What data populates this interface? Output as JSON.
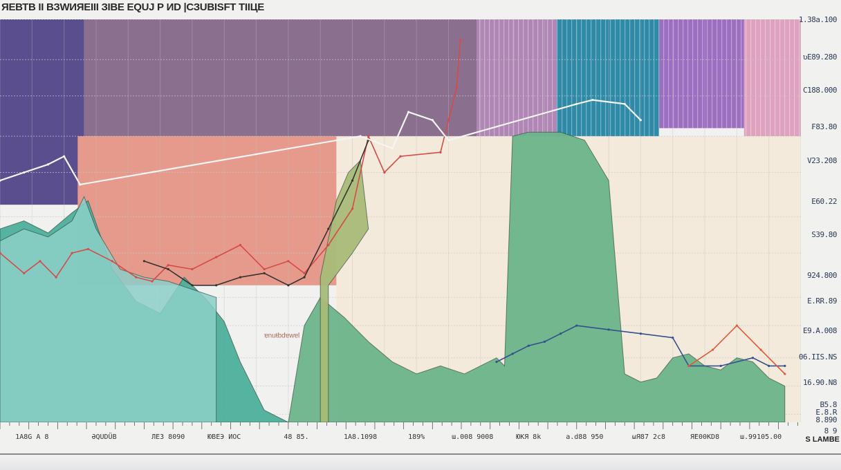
{
  "chart_data": {
    "type": "area",
    "title": "ЯЕВТВ II ВЗWИЯЕIII ЗIBE ЕQUJ Р ИD |СЗUBISFT TIIЦE",
    "xlabel": "S LAMBE",
    "ylabel": "",
    "grid": true,
    "legend": "none",
    "ylim": [
      0,
      100
    ],
    "xlim": [
      0,
      100
    ],
    "y_ticks": [
      {
        "label": "1.38a.100",
        "value": 100
      },
      {
        "label": "ʋE89.280",
        "value": 90
      },
      {
        "label": "C188.000",
        "value": 81
      },
      {
        "label": "₣83.80",
        "value": 71
      },
      {
        "label": "V23.208",
        "value": 62
      },
      {
        "label": "E60.22",
        "value": 51
      },
      {
        "label": "S39.80",
        "value": 42
      },
      {
        "label": "924.800",
        "value": 31
      },
      {
        "label": "E.RR.89",
        "value": 24
      },
      {
        "label": "E9.А.008",
        "value": 16
      },
      {
        "label": "06.IIS.NS",
        "value": 9
      },
      {
        "label": "16.90.N8",
        "value": 2
      },
      {
        "label": "B5.8",
        "value": -4
      },
      {
        "label": "E.8.R",
        "value": -6
      },
      {
        "label": "8.890",
        "value": -8
      },
      {
        "label": "8 9",
        "value": -11
      }
    ],
    "x_ticks": [
      {
        "label": "1A8G A 8",
        "value": 4
      },
      {
        "label": "ƏQUDÜB",
        "value": 13
      },
      {
        "label": "ЛЕ3 8090",
        "value": 21
      },
      {
        "label": "ЮВЕЭ ИОС",
        "value": 28
      },
      {
        "label": "48 85.",
        "value": 37
      },
      {
        "label": "1A8.1098",
        "value": 45
      },
      {
        "label": "189%",
        "value": 52
      },
      {
        "label": "ɯ.008 9008",
        "value": 59
      },
      {
        "label": "ЮКЯ 8k",
        "value": 66
      },
      {
        "label": "a.d88 950",
        "value": 73
      },
      {
        "label": "ωЯ87 2c8",
        "value": 81
      },
      {
        "label": "ЯЕ00KD8",
        "value": 88
      },
      {
        "label": "ɯ.99105.00",
        "value": 95
      }
    ],
    "bands": [
      {
        "name": "violet",
        "color": "#5b4e8e",
        "x": [
          0,
          10.5
        ],
        "y": [
          100,
          54
        ]
      },
      {
        "name": "mauve",
        "color": "#8a6f8f",
        "x": [
          10.5,
          59.5
        ],
        "y": [
          100,
          71
        ]
      },
      {
        "name": "salmon",
        "color": "#e59a8c",
        "x": [
          9.7,
          59.5
        ],
        "y": [
          71,
          34
        ]
      },
      {
        "name": "lilac-stripes",
        "color": "#b087b4",
        "x": [
          59.5,
          69.5
        ],
        "y": [
          100,
          71
        ]
      },
      {
        "name": "teal-stripes",
        "color": "#2f8aa8",
        "x": [
          69.5,
          82.3
        ],
        "y": [
          100,
          70
        ]
      },
      {
        "name": "purple-stripes",
        "color": "#9c6ec0",
        "x": [
          82.3,
          92.9
        ],
        "y": [
          100,
          73
        ]
      },
      {
        "name": "pink-stripes",
        "color": "#dea2be",
        "x": [
          92.9,
          100
        ],
        "y": [
          100,
          71
        ]
      },
      {
        "name": "cream",
        "color": "#f3eadb",
        "x": [
          42,
          100
        ],
        "y": [
          71,
          0
        ]
      }
    ],
    "series": [
      {
        "name": "teal-area",
        "color": "#4daf9a",
        "x": [
          0,
          3,
          6,
          9,
          11,
          14,
          17,
          20,
          23,
          26,
          28,
          30,
          33,
          36,
          37
        ],
        "values": [
          48,
          50,
          47,
          52,
          55,
          38,
          30,
          27,
          36,
          30,
          25,
          15,
          3,
          0,
          0
        ]
      },
      {
        "name": "light-teal-area",
        "color": "#8ccfc8",
        "x": [
          0,
          3,
          6,
          9,
          10.5,
          12,
          15,
          18,
          21,
          24,
          27
        ],
        "values": [
          45,
          48,
          46,
          50,
          56,
          48,
          38,
          36,
          35,
          33,
          31
        ]
      },
      {
        "name": "green-area",
        "color": "#6cb48b",
        "x": [
          36,
          38,
          40,
          43,
          46,
          49,
          52,
          55,
          58,
          62,
          63,
          64,
          66,
          70,
          73,
          76,
          78,
          80,
          82,
          84,
          86,
          88,
          90,
          92,
          94,
          96,
          98
        ],
        "values": [
          0,
          24,
          31,
          26,
          20,
          15,
          12,
          14,
          12,
          16,
          14,
          71,
          72,
          72,
          70,
          60,
          12,
          10,
          11,
          16,
          17,
          14,
          13,
          16,
          15,
          11,
          9
        ]
      },
      {
        "name": "olive-area",
        "color": "#a8bb78",
        "x": [
          40,
          42,
          43.5,
          45,
          46,
          44,
          41
        ],
        "values": [
          36,
          55,
          62,
          65,
          48,
          42,
          34
        ]
      },
      {
        "name": "red-line",
        "color": "#d84a48",
        "x": [
          0,
          3,
          5,
          7,
          9,
          11,
          14,
          17,
          19,
          21,
          24,
          27,
          30,
          33,
          36,
          38,
          41,
          44,
          46,
          48,
          50,
          55,
          56,
          57,
          57.5
        ],
        "values": [
          42,
          37,
          40,
          36,
          42,
          43,
          40,
          36,
          35,
          39,
          38,
          41,
          44,
          38,
          40,
          37,
          44,
          53,
          71,
          62,
          66,
          67,
          75,
          83,
          95
        ]
      },
      {
        "name": "dark-line",
        "color": "#333333",
        "x": [
          18,
          21,
          24,
          27,
          30,
          33,
          36,
          38,
          41,
          44,
          46
        ],
        "values": [
          40,
          38,
          34,
          34,
          36,
          37,
          34,
          36,
          48,
          60,
          70
        ]
      },
      {
        "name": "white-line",
        "color": "#f5f5f5",
        "x": [
          0,
          3,
          6,
          8,
          10,
          45,
          49,
          51,
          54,
          56,
          72,
          74,
          78,
          80
        ],
        "values": [
          60,
          62,
          64,
          66,
          59,
          71,
          68,
          77,
          75,
          70,
          79,
          80,
          79,
          75
        ]
      },
      {
        "name": "navy-line",
        "color": "#34508c",
        "x": [
          62,
          64,
          66,
          68,
          70,
          72,
          76,
          80,
          84,
          86,
          90,
          94,
          96,
          98
        ],
        "values": [
          15,
          17,
          19,
          20,
          22,
          24,
          23,
          22,
          21,
          14,
          14,
          16,
          14,
          14
        ]
      },
      {
        "name": "orange-peak-line",
        "color": "#e05a3a",
        "x": [
          86,
          89,
          92,
          95,
          98
        ],
        "values": [
          14,
          18,
          24,
          18,
          12
        ]
      }
    ],
    "annotations": [
      {
        "text": "ɐnuŧbdɐwɐl",
        "x": 33,
        "y": 21
      }
    ]
  }
}
